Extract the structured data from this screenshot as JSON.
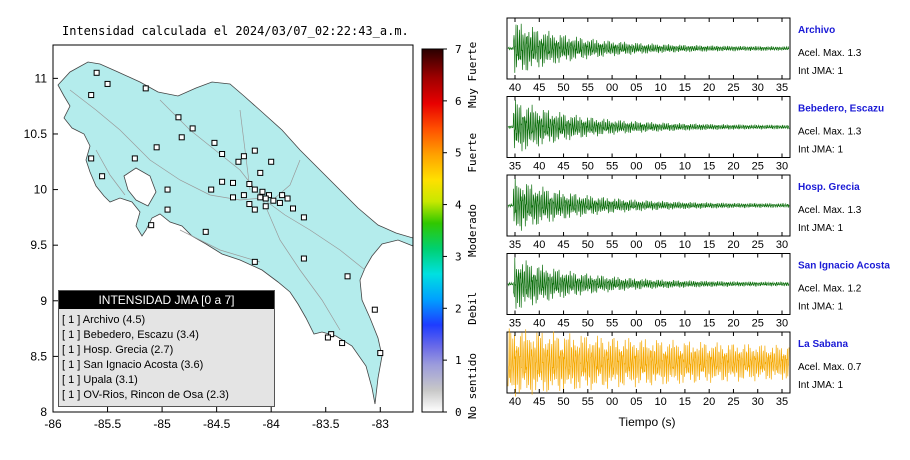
{
  "map": {
    "title": "Intensidad calculada el 2024/03/07_02:22:43_a.m.",
    "xticks": [
      "-86",
      "-85.5",
      "-85",
      "-84.5",
      "-84",
      "-83.5",
      "-83"
    ],
    "yticks": [
      "11",
      "10.5",
      "10",
      "9.5",
      "9",
      "8.5",
      "8"
    ],
    "lon_range": [
      -86,
      -82.7
    ],
    "lat_range": [
      8,
      11.3
    ],
    "land_color": "#b4ecec",
    "stations": [
      {
        "lon": -85.6,
        "lat": 11.05
      },
      {
        "lon": -85.5,
        "lat": 10.95
      },
      {
        "lon": -85.15,
        "lat": 10.91
      },
      {
        "lon": -85.65,
        "lat": 10.85
      },
      {
        "lon": -84.85,
        "lat": 10.65
      },
      {
        "lon": -84.72,
        "lat": 10.55
      },
      {
        "lon": -84.82,
        "lat": 10.47
      },
      {
        "lon": -84.52,
        "lat": 10.42
      },
      {
        "lon": -84.15,
        "lat": 10.35
      },
      {
        "lon": -85.05,
        "lat": 10.38
      },
      {
        "lon": -85.25,
        "lat": 10.28
      },
      {
        "lon": -85.65,
        "lat": 10.28
      },
      {
        "lon": -85.55,
        "lat": 10.12
      },
      {
        "lon": -84.45,
        "lat": 10.32
      },
      {
        "lon": -84.25,
        "lat": 10.3
      },
      {
        "lon": -84.3,
        "lat": 10.25
      },
      {
        "lon": -84.0,
        "lat": 10.25
      },
      {
        "lon": -84.1,
        "lat": 10.15
      },
      {
        "lon": -84.45,
        "lat": 10.07
      },
      {
        "lon": -84.35,
        "lat": 10.06
      },
      {
        "lon": -84.2,
        "lat": 10.05
      },
      {
        "lon": -84.15,
        "lat": 10.0
      },
      {
        "lon": -84.08,
        "lat": 9.98
      },
      {
        "lon": -84.02,
        "lat": 9.95
      },
      {
        "lon": -83.98,
        "lat": 9.9
      },
      {
        "lon": -83.92,
        "lat": 9.88
      },
      {
        "lon": -84.05,
        "lat": 9.92
      },
      {
        "lon": -84.1,
        "lat": 9.93
      },
      {
        "lon": -83.9,
        "lat": 9.95
      },
      {
        "lon": -83.85,
        "lat": 9.92
      },
      {
        "lon": -84.25,
        "lat": 9.95
      },
      {
        "lon": -84.35,
        "lat": 9.93
      },
      {
        "lon": -84.55,
        "lat": 10.0
      },
      {
        "lon": -84.95,
        "lat": 10.0
      },
      {
        "lon": -84.2,
        "lat": 9.87
      },
      {
        "lon": -84.05,
        "lat": 9.85
      },
      {
        "lon": -83.8,
        "lat": 9.83
      },
      {
        "lon": -84.15,
        "lat": 9.82
      },
      {
        "lon": -83.7,
        "lat": 9.75
      },
      {
        "lon": -84.6,
        "lat": 9.62
      },
      {
        "lon": -85.1,
        "lat": 9.68
      },
      {
        "lon": -84.95,
        "lat": 9.82
      },
      {
        "lon": -84.15,
        "lat": 9.35
      },
      {
        "lon": -83.7,
        "lat": 9.38
      },
      {
        "lon": -83.3,
        "lat": 9.22
      },
      {
        "lon": -83.05,
        "lat": 8.92
      },
      {
        "lon": -83.45,
        "lat": 8.7
      },
      {
        "lon": -83.35,
        "lat": 8.62
      },
      {
        "lon": -83.0,
        "lat": 8.53
      },
      {
        "lon": -83.48,
        "lat": 8.67
      }
    ]
  },
  "colorbar": {
    "ticks": [
      "0",
      "1",
      "2",
      "3",
      "4",
      "5",
      "6",
      "7"
    ],
    "labels": [
      "No sentido",
      "Debil",
      "Moderado",
      "Fuerte",
      "Muy Fuerte"
    ]
  },
  "legend": {
    "title": "INTENSIDAD JMA [0 a 7]",
    "rows": [
      "[ 1 ]  Archivo (4.5)",
      "[ 1 ]  Bebedero, Escazu (3.4)",
      "[ 1 ]  Hosp. Grecia (2.7)",
      "[ 1 ]  San Ignacio Acosta (3.6)",
      "[ 1 ]  Upala (3.1)",
      "[ 1 ]  OV-Rios, Rincon de Osa (2.3)"
    ]
  },
  "waveforms": {
    "xlabel": "Tiempo (s)",
    "panels": [
      {
        "name": "Archivo",
        "pga": "Acel. Max. 1.3",
        "jma": "Int JMA: 1",
        "ticks": [
          "40",
          "45",
          "50",
          "55",
          "00",
          "05",
          "10",
          "15",
          "20",
          "25",
          "30",
          "35"
        ],
        "color": "#0b6e0b"
      },
      {
        "name": "Bebedero, Escazu",
        "pga": "Acel. Max. 1.3",
        "jma": "Int JMA: 1",
        "ticks": [
          "35",
          "40",
          "45",
          "50",
          "55",
          "00",
          "05",
          "10",
          "15",
          "20",
          "25",
          "30"
        ],
        "color": "#0b6e0b"
      },
      {
        "name": "Hosp. Grecia",
        "pga": "Acel. Max. 1.3",
        "jma": "Int JMA: 1",
        "ticks": [
          "35",
          "40",
          "45",
          "50",
          "55",
          "00",
          "05",
          "10",
          "15",
          "20",
          "25",
          "30"
        ],
        "color": "#0b6e0b"
      },
      {
        "name": "San Ignacio Acosta",
        "pga": "Acel. Max. 1.2",
        "jma": "Int JMA: 1",
        "ticks": [
          "35",
          "40",
          "45",
          "50",
          "55",
          "00",
          "05",
          "10",
          "15",
          "20",
          "25",
          "30"
        ],
        "color": "#0b6e0b"
      },
      {
        "name": "La Sabana",
        "pga": "Acel. Max. 0.7",
        "jma": "Int JMA: 1",
        "ticks": [
          "40",
          "45",
          "50",
          "55",
          "00",
          "05",
          "10",
          "15",
          "20",
          "25",
          "30",
          "35"
        ],
        "color": "#f5a800"
      }
    ]
  },
  "chart_data": [
    {
      "type": "scatter",
      "title": "Intensidad calculada el 2024/03/07_02:22:43_a.m.",
      "xlabel": "",
      "ylabel": "",
      "xlim": [
        -86,
        -82.7
      ],
      "ylim": [
        8,
        11.3
      ]
    },
    {
      "type": "line",
      "xlabel": "Tiempo (s)",
      "series": [
        {
          "name": "Archivo",
          "peak": 1.3
        },
        {
          "name": "Bebedero, Escazu",
          "peak": 1.3
        },
        {
          "name": "Hosp. Grecia",
          "peak": 1.3
        },
        {
          "name": "San Ignacio Acosta",
          "peak": 1.2
        },
        {
          "name": "La Sabana",
          "peak": 0.7
        }
      ]
    }
  ]
}
